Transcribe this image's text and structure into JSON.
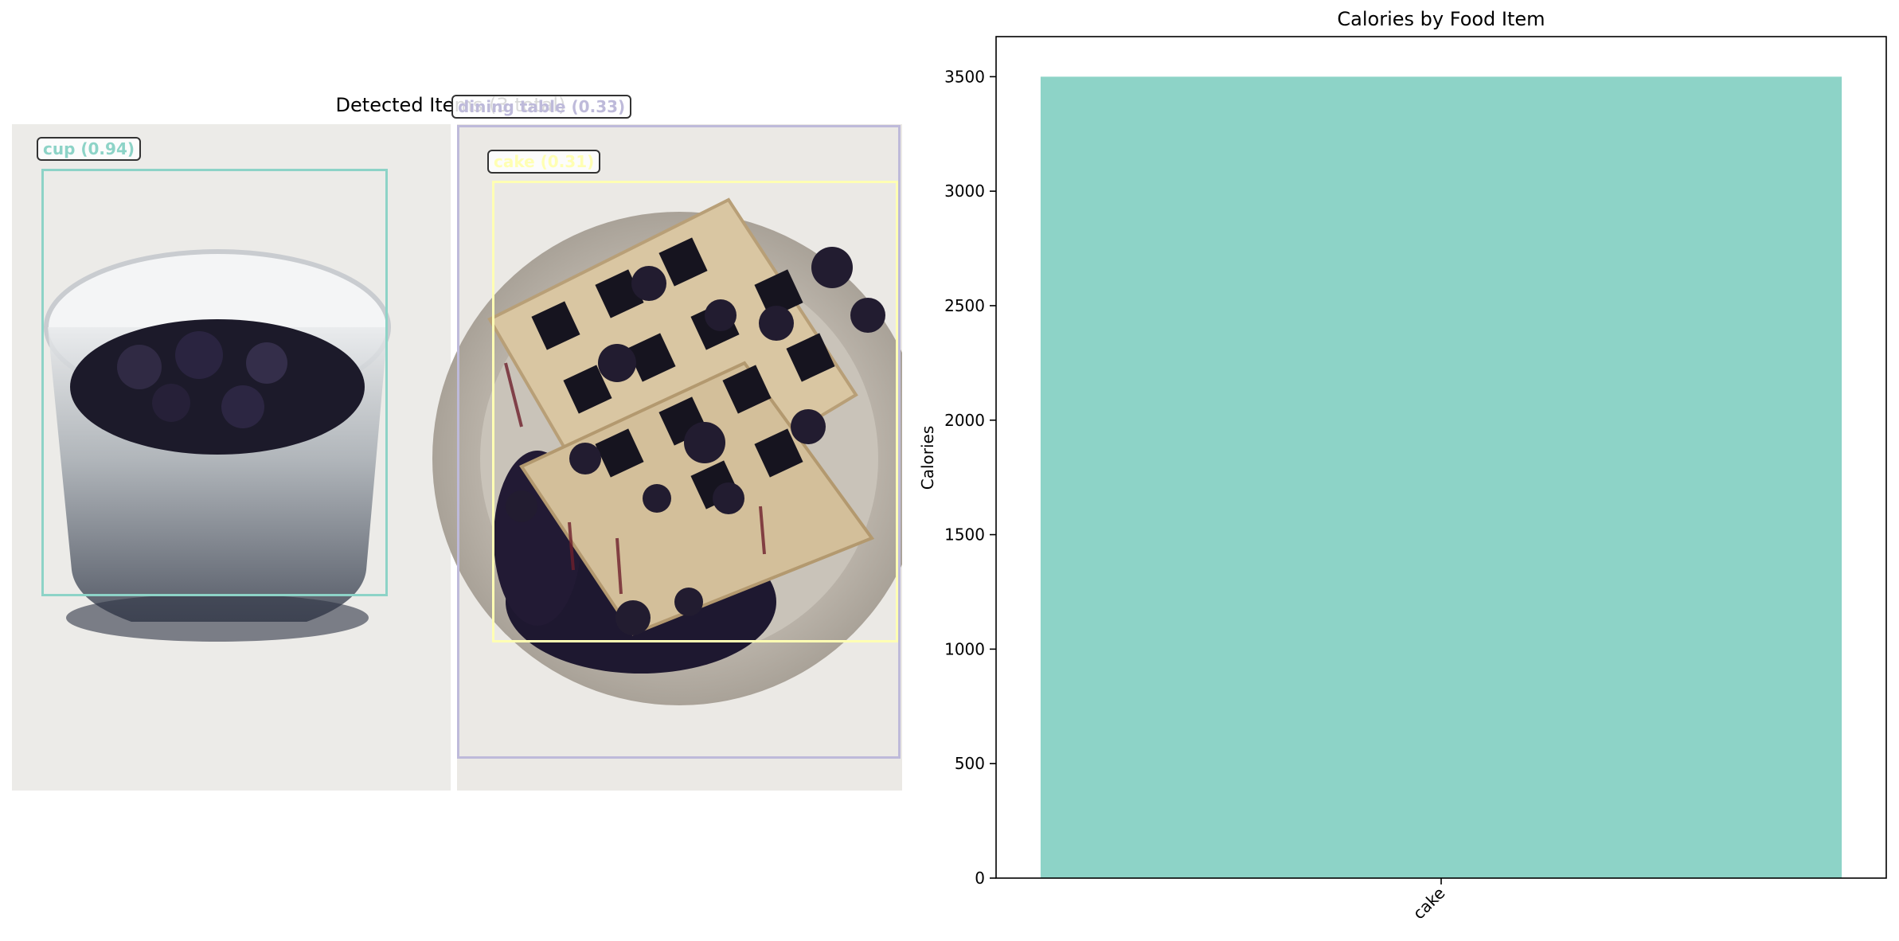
{
  "detection_panel": {
    "title": "Detected Items (3 total)",
    "detections": [
      {
        "label": "cup (0.94)",
        "color": "#8dd3c7"
      },
      {
        "label": "dining table (0.33)",
        "color": "#bebada"
      },
      {
        "label": "cake (0.31)",
        "color": "#ffffb3"
      }
    ]
  },
  "chart_data": {
    "type": "bar",
    "title": "Calories by Food Item",
    "xlabel": "",
    "ylabel": "Calories",
    "categories": [
      "cake"
    ],
    "values": [
      3500
    ],
    "ylim": [
      0,
      3675
    ],
    "yticks": [
      0,
      500,
      1000,
      1500,
      2000,
      2500,
      3000,
      3500
    ],
    "bar_color": "#8dd3c7",
    "grid": false
  }
}
